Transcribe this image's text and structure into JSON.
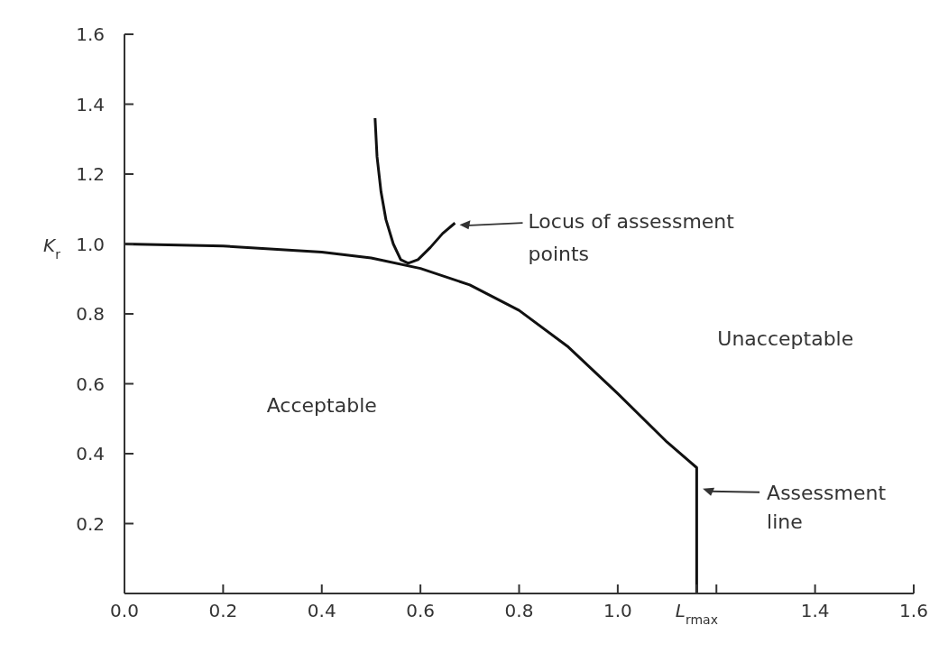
{
  "chart_data": {
    "type": "line",
    "xlabel": null,
    "ylabel": "K$_{r}$",
    "xlim": [
      0,
      1.6
    ],
    "ylim": [
      0,
      1.6
    ],
    "xticks": [
      {
        "value": 0,
        "label": "0.0"
      },
      0.2,
      0.4,
      0.6,
      0.8,
      {
        "value": 1,
        "label": "1.0"
      },
      {
        "value": 1.16,
        "label": "L$_{rmax}$"
      },
      {
        "value": 1.2,
        "label": null
      },
      1.4,
      1.6
    ],
    "yticks": [
      0.2,
      0.4,
      0.6,
      0.8,
      {
        "value": 1,
        "label": "1.0"
      },
      1.2,
      1.4,
      1.6
    ],
    "marker": "none",
    "line_style": "solid",
    "series": [
      {
        "color": "#111111",
        "x": [
          0,
          0.2,
          0.4,
          0.5,
          0.6,
          0.7,
          0.8,
          0.9,
          1.0,
          1.1,
          1.16,
          1.16
        ],
        "values": [
          1.0,
          0.994,
          0.977,
          0.96,
          0.93,
          0.883,
          0.81,
          0.705,
          0.572,
          0.433,
          0.36,
          0
        ]
      },
      {
        "color": "#111111",
        "x": [
          0.508,
          0.512,
          0.52,
          0.53,
          0.545,
          0.56,
          0.575,
          0.595,
          0.62,
          0.645,
          0.67
        ],
        "values": [
          1.36,
          1.25,
          1.15,
          1.07,
          1.0,
          0.955,
          0.945,
          0.955,
          0.99,
          1.03,
          1.06
        ]
      }
    ],
    "annotations": [
      "Locus of assessment points",
      "Assessment line",
      "Acceptable",
      "Unacceptable"
    ]
  }
}
